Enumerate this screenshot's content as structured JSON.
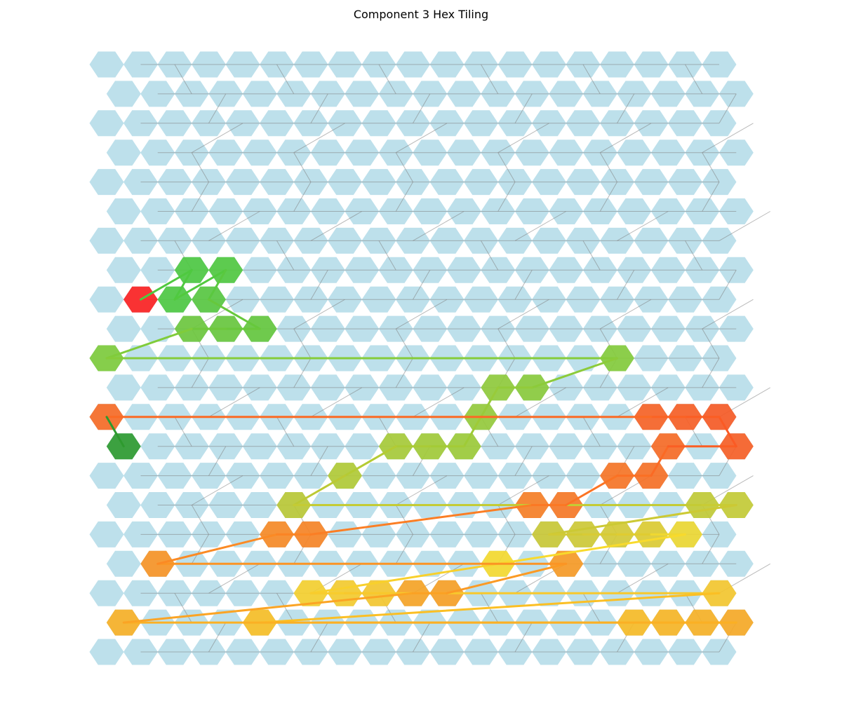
{
  "chart_data": {
    "type": "hex-tiling-path",
    "title": "Component 3 Hex Tiling",
    "grid": {
      "rows": 21,
      "cols_even_rows": 19,
      "cols_odd_rows": 19,
      "odd_row_offset": "right"
    },
    "colors": {
      "background_hex": "#add8e6",
      "background_line": "#808080",
      "path_start": "#ff0000",
      "path_end": "#008000"
    },
    "highlighted_path": [
      {
        "col": 1,
        "row": 8,
        "color": "#ff1f1f"
      },
      {
        "col": 2,
        "row": 7,
        "color": "#4fc940"
      },
      {
        "col": 2,
        "row": 8,
        "color": "#4fc940"
      },
      {
        "col": 3,
        "row": 7,
        "color": "#52c93e"
      },
      {
        "col": 3,
        "row": 8,
        "color": "#5ac83f"
      },
      {
        "col": 4,
        "row": 9,
        "color": "#66c83c"
      },
      {
        "col": 3,
        "row": 9,
        "color": "#6ac83c"
      },
      {
        "col": 2,
        "row": 9,
        "color": "#6fc83c"
      },
      {
        "col": 0,
        "row": 10,
        "color": "#80cc3a"
      },
      {
        "col": 15,
        "row": 10,
        "color": "#86cc3a"
      },
      {
        "col": 12,
        "row": 11,
        "color": "#8ccb3a"
      },
      {
        "col": 11,
        "row": 11,
        "color": "#92cb3a"
      },
      {
        "col": 11,
        "row": 12,
        "color": "#98cb3a"
      },
      {
        "col": 10,
        "row": 13,
        "color": "#9ecb36"
      },
      {
        "col": 9,
        "row": 13,
        "color": "#a4cb36"
      },
      {
        "col": 8,
        "row": 13,
        "color": "#aacb36"
      },
      {
        "col": 7,
        "row": 14,
        "color": "#b4cb34"
      },
      {
        "col": 5,
        "row": 15,
        "color": "#bcc934"
      },
      {
        "col": 17,
        "row": 15,
        "color": "#c4cb34"
      },
      {
        "col": 18,
        "row": 15,
        "color": "#c8cc34"
      },
      {
        "col": 13,
        "row": 16,
        "color": "#ccc934"
      },
      {
        "col": 14,
        "row": 16,
        "color": "#d2ca34"
      },
      {
        "col": 15,
        "row": 16,
        "color": "#d8cb34"
      },
      {
        "col": 16,
        "row": 16,
        "color": "#e0cc30"
      },
      {
        "col": 17,
        "row": 16,
        "color": "#f0d830"
      },
      {
        "col": 11,
        "row": 17,
        "color": "#f8da2c"
      },
      {
        "col": 6,
        "row": 18,
        "color": "#f8d02c"
      },
      {
        "col": 7,
        "row": 18,
        "color": "#f8cc2c"
      },
      {
        "col": 8,
        "row": 18,
        "color": "#f8c82c"
      },
      {
        "col": 21,
        "row": 18,
        "color": "#f8c82c",
        "alias_col": 18
      },
      {
        "col": 4,
        "row": 19,
        "color": "#fbbf24"
      },
      {
        "col": 15,
        "row": 19,
        "color": "#fbbb24"
      },
      {
        "col": 16,
        "row": 19,
        "color": "#fbb624"
      },
      {
        "col": 17,
        "row": 19,
        "color": "#fbb124"
      },
      {
        "col": 18,
        "row": 19,
        "color": "#fbaa24"
      },
      {
        "col": 0,
        "row": 19,
        "color": "#fbb024"
      },
      {
        "col": 9,
        "row": 18,
        "color": "#fba424"
      },
      {
        "col": 10,
        "row": 18,
        "color": "#fba024"
      },
      {
        "col": 13,
        "row": 17,
        "color": "#fb9a24"
      },
      {
        "col": 1,
        "row": 17,
        "color": "#fb9424"
      },
      {
        "col": 5,
        "row": 16,
        "color": "#fb8a24"
      },
      {
        "col": 6,
        "row": 16,
        "color": "#fb8424"
      },
      {
        "col": 12,
        "row": 15,
        "color": "#fb7e24"
      },
      {
        "col": 13,
        "row": 15,
        "color": "#fb7824"
      },
      {
        "col": 15,
        "row": 14,
        "color": "#fb7424"
      },
      {
        "col": 16,
        "row": 14,
        "color": "#fb7024"
      },
      {
        "col": 16,
        "row": 13,
        "color": "#fb6a24"
      },
      {
        "col": 18,
        "row": 13,
        "color": "#fb5e24"
      },
      {
        "col": 18,
        "row": 12,
        "color": "#fb5a24"
      },
      {
        "col": 17,
        "row": 12,
        "color": "#fb5e24"
      },
      {
        "col": 16,
        "row": 12,
        "color": "#fb6224"
      },
      {
        "col": 0,
        "row": 12,
        "color": "#fb6a24"
      },
      {
        "col": 0,
        "row": 13,
        "color": "#2e9a2e"
      }
    ],
    "grid_lines": "on"
  }
}
